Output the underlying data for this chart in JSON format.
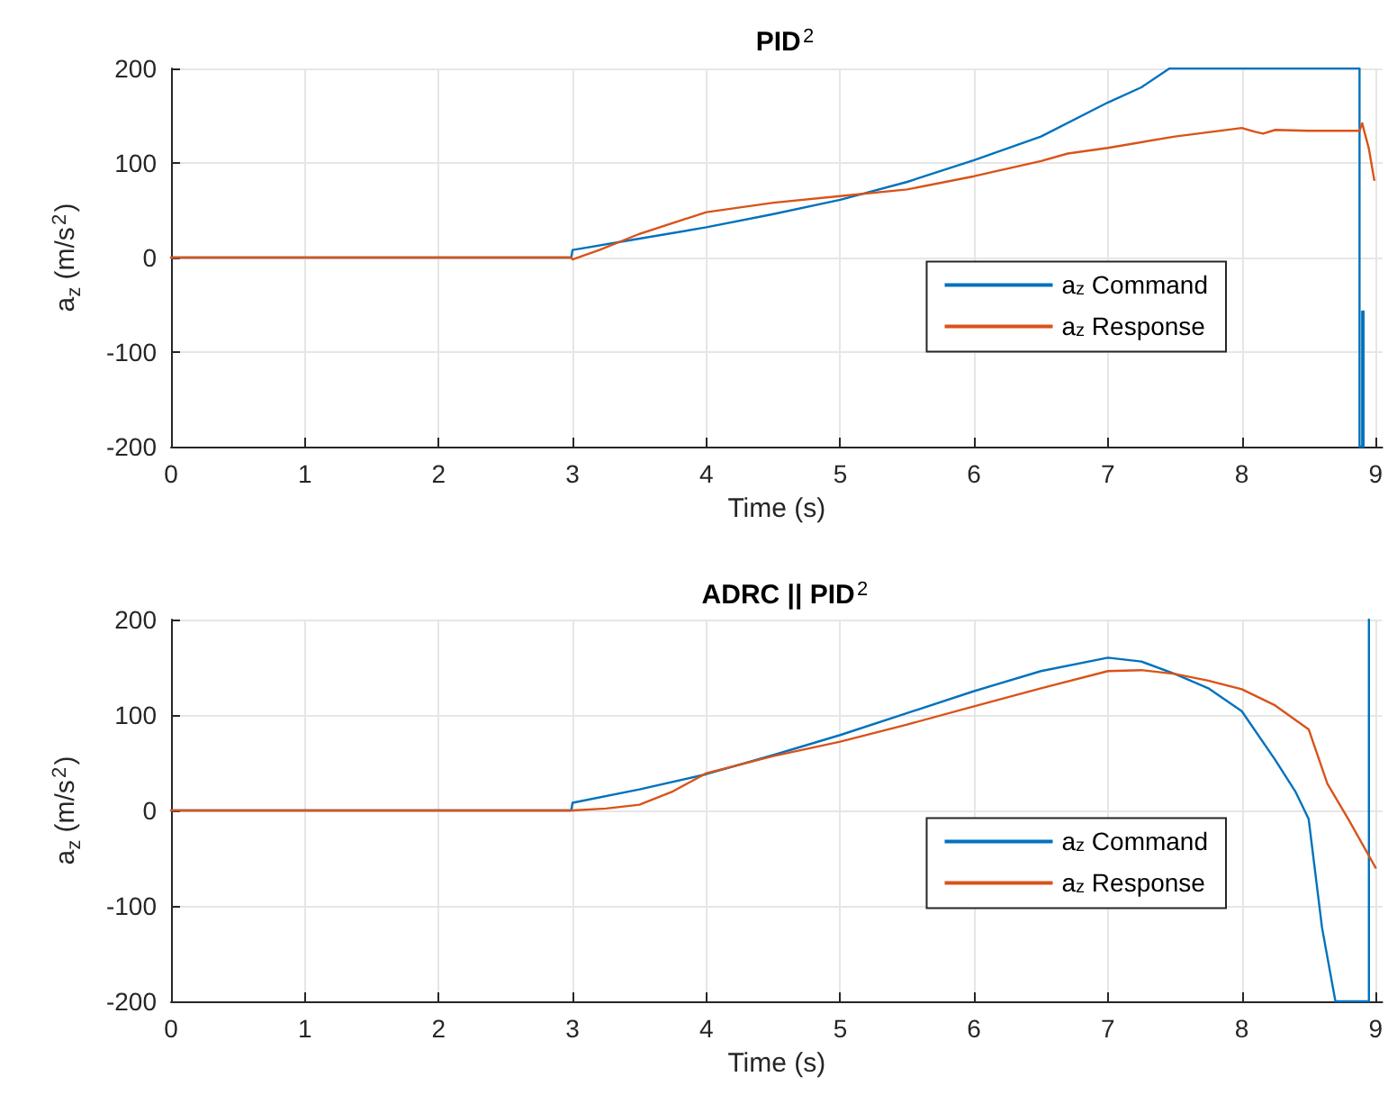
{
  "chart_data": [
    {
      "type": "line",
      "title": "PID$^{2}$",
      "xlabel": "Time (s)",
      "ylabel": "a$_{z}$ (m/s$^{2}$)",
      "xlim": [
        0,
        9.05
      ],
      "xticks": [
        0,
        1,
        2,
        3,
        4,
        5,
        6,
        7,
        8,
        9
      ],
      "ylim": [
        -200,
        200
      ],
      "yticks": [
        -200,
        -100,
        0,
        100,
        200
      ],
      "grid": true,
      "legend": "right",
      "line_style": "solid",
      "marker": "none",
      "series": [
        {
          "name": "a$_{z}$ Command",
          "color": "#0072bd",
          "x": [
            0,
            2.99,
            3,
            3.5,
            4,
            4.5,
            5,
            5.5,
            6,
            6.5,
            7,
            7.25,
            7.46,
            8,
            8.5,
            8.88,
            8.88,
            8.9,
            8.9,
            8.91,
            8.91
          ],
          "values": [
            0,
            0,
            8,
            20,
            32,
            46,
            61,
            80,
            103,
            128,
            164,
            180,
            200,
            200,
            200,
            200,
            -200,
            -200,
            -57,
            -57,
            -200
          ]
        },
        {
          "name": "a$_{z}$ Response",
          "color": "#d95319",
          "x": [
            0,
            2.99,
            3,
            3.2,
            3.5,
            4,
            4.5,
            5,
            5.5,
            6,
            6.5,
            6.7,
            7,
            7.5,
            8,
            8.1,
            8.16,
            8.25,
            8.5,
            8.88,
            8.9,
            8.95,
            8.99
          ],
          "values": [
            0,
            0,
            -2,
            8,
            25,
            48,
            58,
            65,
            72,
            86,
            102,
            110,
            116,
            128,
            137,
            133,
            131,
            135,
            134,
            134,
            142,
            115,
            82
          ]
        }
      ]
    },
    {
      "type": "line",
      "title": "ADRC || PID$^{2}$",
      "xlabel": "Time (s)",
      "ylabel": "a$_{z}$ (m/s$^{2}$)",
      "xlim": [
        0,
        9.05
      ],
      "xticks": [
        0,
        1,
        2,
        3,
        4,
        5,
        6,
        7,
        8,
        9
      ],
      "ylim": [
        -200,
        200
      ],
      "yticks": [
        -200,
        -100,
        0,
        100,
        200
      ],
      "grid": true,
      "legend": "right",
      "line_style": "solid",
      "marker": "none",
      "series": [
        {
          "name": "a$_{z}$ Command",
          "color": "#0072bd",
          "x": [
            0,
            2.99,
            3,
            3.5,
            4,
            4.5,
            5,
            5.5,
            6,
            6.5,
            7,
            7.25,
            7.5,
            7.75,
            8,
            8.25,
            8.4,
            8.5,
            8.6,
            8.7,
            8.95,
            8.95
          ],
          "values": [
            0,
            0,
            8,
            22,
            38,
            58,
            79,
            102,
            125,
            146,
            160,
            156,
            143,
            128,
            104,
            53,
            20,
            -9,
            -123,
            -200,
            -200,
            200
          ]
        },
        {
          "name": "a$_{z}$ Response",
          "color": "#d95319",
          "x": [
            0,
            2.99,
            3,
            3.25,
            3.5,
            3.75,
            4,
            4.5,
            5,
            5.5,
            6,
            6.5,
            7,
            7.25,
            7.5,
            7.75,
            8,
            8.25,
            8.5,
            8.64,
            8.8,
            9
          ],
          "values": [
            0,
            0,
            0,
            2,
            6,
            20,
            39,
            57,
            72,
            90,
            109,
            128,
            146,
            147,
            143,
            136,
            127,
            110,
            85,
            28,
            -10,
            -60
          ]
        }
      ]
    }
  ]
}
